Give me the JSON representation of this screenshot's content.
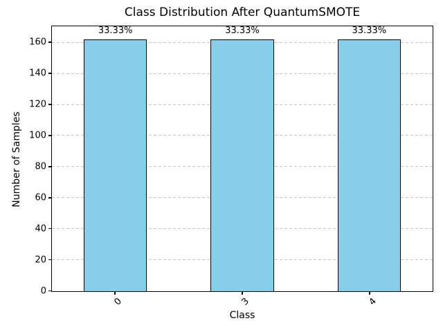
{
  "chart_data": {
    "type": "bar",
    "title": "Class Distribution After QuantumSMOTE",
    "xlabel": "Class",
    "ylabel": "Number of Samples",
    "categories": [
      "0",
      "3",
      "4"
    ],
    "values": [
      162,
      162,
      162
    ],
    "bar_labels": [
      "33.33%",
      "33.33%",
      "33.33%"
    ],
    "y_ticks": [
      0,
      20,
      40,
      60,
      80,
      100,
      120,
      140,
      160
    ],
    "ylim": [
      0,
      170.1
    ],
    "bar_color": "#87CEEB",
    "bar_edge_color": "#000000",
    "grid": "y-only-dashed",
    "grid_color": "#c6c6c6",
    "spine_color": "#000000",
    "x_tick_rotation_deg": 45,
    "legend": "none"
  }
}
